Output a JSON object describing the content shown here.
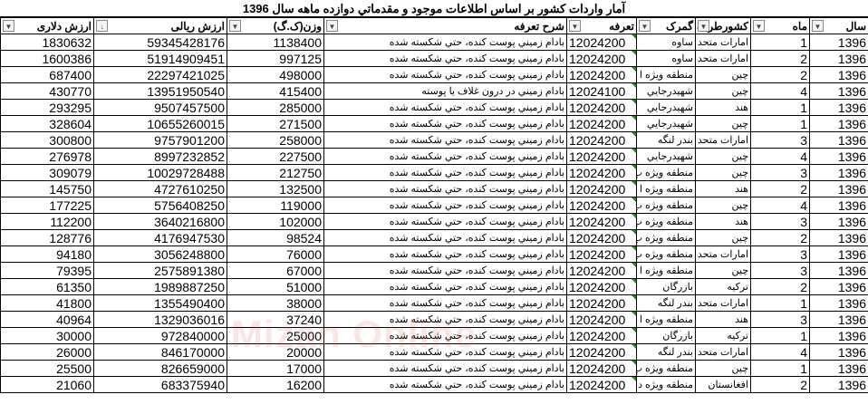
{
  "title": "آمار واردات كشور بر اساس اطلاعات موجود و مقدماتي دوازده ماهه سال 1396",
  "watermark": "Mizan Online News Agency",
  "headers": [
    "ارزش دلاری",
    "ارزش ریالی",
    "وزن(ک.گ)",
    "شرح تعرفه",
    "تعرفه",
    "گمرک",
    "کشورطرف",
    "ماه",
    "سال"
  ],
  "filter_icons": [
    "dropdown-icon",
    "sort-desc-icon",
    "filter-active-icon",
    "dropdown-icon",
    "dropdown-icon",
    "dropdown-icon",
    "dropdown-icon",
    "dropdown-icon",
    "dropdown-icon"
  ],
  "rows": [
    [
      "1830632",
      "59345428176",
      "1138400",
      "بادام زميني پوست كنده، حتي شكسته شده",
      "12024200",
      "ساوه",
      "امارات متحد",
      "1",
      "1396"
    ],
    [
      "1600386",
      "51914909451",
      "997125",
      "بادام زميني پوست كنده، حتي شكسته شده",
      "12024200",
      "ساوه",
      "امارات متحد",
      "2",
      "1396"
    ],
    [
      "687400",
      "22297421025",
      "498000",
      "بادام زميني پوست كنده، حتي شكسته شده",
      "12024200",
      "منطقه ويژه ا",
      "چين",
      "2",
      "1396"
    ],
    [
      "430770",
      "13951950540",
      "415400",
      "بادام زميني در درون غلاف يا پوسته",
      "12024100",
      "شهيدرجايي",
      "چين",
      "4",
      "1396"
    ],
    [
      "293295",
      "9507457500",
      "285000",
      "بادام زميني پوست كنده، حتي شكسته شده",
      "12024200",
      "شهيدرجايي",
      "هند",
      "1",
      "1396"
    ],
    [
      "328604",
      "10655260015",
      "271500",
      "بادام زميني پوست كنده، حتي شكسته شده",
      "12024200",
      "شهيدرجايي",
      "چين",
      "1",
      "1396"
    ],
    [
      "300800",
      "9757901200",
      "258000",
      "بادام زميني پوست كنده، حتي شكسته شده",
      "12024200",
      "بندر لنگه",
      "امارات متحد",
      "3",
      "1396"
    ],
    [
      "276978",
      "8997232852",
      "227500",
      "بادام زميني پوست كنده، حتي شكسته شده",
      "12024200",
      "شهيدرجايي",
      "چين",
      "4",
      "1396"
    ],
    [
      "309079",
      "10029728488",
      "212750",
      "بادام زميني پوست كنده، حتي شكسته شده",
      "12024200",
      "منطقه ويژه ب",
      "چين",
      "3",
      "1396"
    ],
    [
      "145750",
      "4727610250",
      "132500",
      "بادام زميني پوست كنده، حتي شكسته شده",
      "12024200",
      "منطقه ويژه ا",
      "هند",
      "2",
      "1396"
    ],
    [
      "177225",
      "5756408250",
      "119000",
      "بادام زميني پوست كنده، حتي شكسته شده",
      "12024200",
      "منطقه ويژه ب",
      "چين",
      "4",
      "1396"
    ],
    [
      "112200",
      "3640216800",
      "102000",
      "بادام زميني پوست كنده، حتي شكسته شده",
      "12024200",
      "منطقه ويژه ب",
      "هند",
      "3",
      "1396"
    ],
    [
      "128776",
      "4176947530",
      "98524",
      "بادام زميني پوست كنده، حتي شكسته شده",
      "12024200",
      "منطقه ويژه ب",
      "چين",
      "2",
      "1396"
    ],
    [
      "94180",
      "3056248800",
      "76000",
      "بادام زميني پوست كنده، حتي شكسته شده",
      "12024200",
      "منطقه ويژه ب",
      "امارات متحد",
      "3",
      "1396"
    ],
    [
      "79395",
      "2575891380",
      "67000",
      "بادام زميني پوست كنده، حتي شكسته شده",
      "12024200",
      "منطقه ويژه ا",
      "چين",
      "3",
      "1396"
    ],
    [
      "61350",
      "1989887250",
      "51000",
      "بادام زميني پوست كنده، حتي شكسته شده",
      "12024200",
      "بازرگان",
      "تركيه",
      "2",
      "1396"
    ],
    [
      "41800",
      "1355490400",
      "38000",
      "بادام زميني پوست كنده، حتي شكسته شده",
      "12024200",
      "بندر لنگه",
      "امارات متحد",
      "1",
      "1396"
    ],
    [
      "40964",
      "1329036016",
      "37240",
      "بادام زميني پوست كنده، حتي شكسته شده",
      "12024200",
      "منطقه ويژه ا",
      "هند",
      "3",
      "1396"
    ],
    [
      "30000",
      "972840000",
      "25000",
      "بادام زميني پوست كنده، حتي شكسته شده",
      "12024200",
      "بازرگان",
      "تركيه",
      "1",
      "1396"
    ],
    [
      "26000",
      "846170000",
      "20000",
      "بادام زميني پوست كنده، حتي شكسته شده",
      "12024200",
      "بندر لنگه",
      "امارات متحد",
      "4",
      "1396"
    ],
    [
      "25500",
      "826659000",
      "17000",
      "بادام زميني پوست كنده، حتي شكسته شده",
      "12024200",
      "منطقه ويژه ب",
      "چين",
      "1",
      "1396"
    ],
    [
      "21060",
      "683375940",
      "16200",
      "بادام زميني پوست كنده، حتي شكسته شده",
      "12024200",
      "منطقه ويژه د",
      "افغانستان",
      "2",
      "1396"
    ]
  ]
}
